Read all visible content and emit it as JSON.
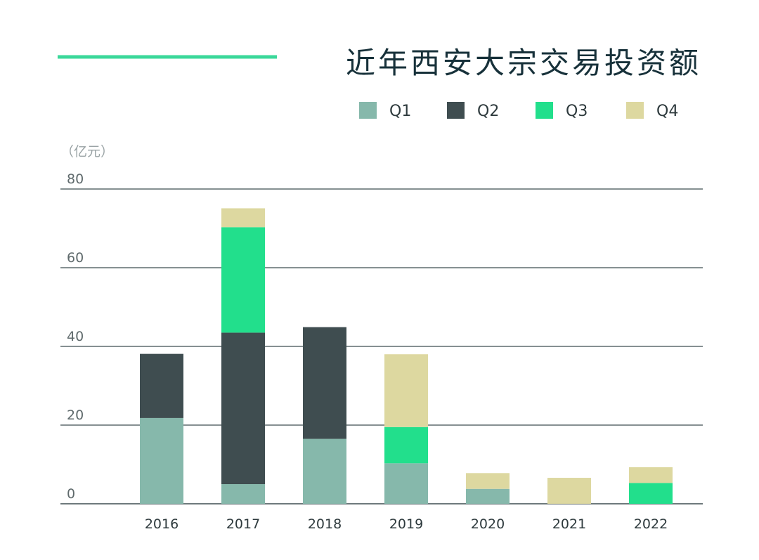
{
  "chart_data": {
    "type": "bar",
    "stacked": true,
    "title": "近年西安大宗交易投资额",
    "ylabel": "（亿元）",
    "xlabel": "",
    "ylim": [
      0,
      80
    ],
    "yticks": [
      0,
      20,
      40,
      60,
      80
    ],
    "grid": true,
    "legend_position": "top-right",
    "categories": [
      "2016",
      "2017",
      "2018",
      "2019",
      "2020",
      "2021",
      "2022"
    ],
    "series": [
      {
        "name": "Q1",
        "color": "#86b8ab",
        "values": [
          21.8,
          5.0,
          16.5,
          10.3,
          3.8,
          0,
          0
        ]
      },
      {
        "name": "Q2",
        "color": "#3f4d50",
        "values": [
          16.3,
          38.5,
          28.4,
          0,
          0,
          0,
          0
        ]
      },
      {
        "name": "Q3",
        "color": "#22df8c",
        "values": [
          0,
          26.8,
          0,
          9.2,
          0,
          0,
          5.3
        ]
      },
      {
        "name": "Q4",
        "color": "#ddd8a0",
        "values": [
          0,
          4.8,
          0,
          18.5,
          4.0,
          6.6,
          4.0
        ]
      }
    ],
    "accent_line_color": "#3ad89a",
    "axis_line_color": "#3f4d50"
  }
}
